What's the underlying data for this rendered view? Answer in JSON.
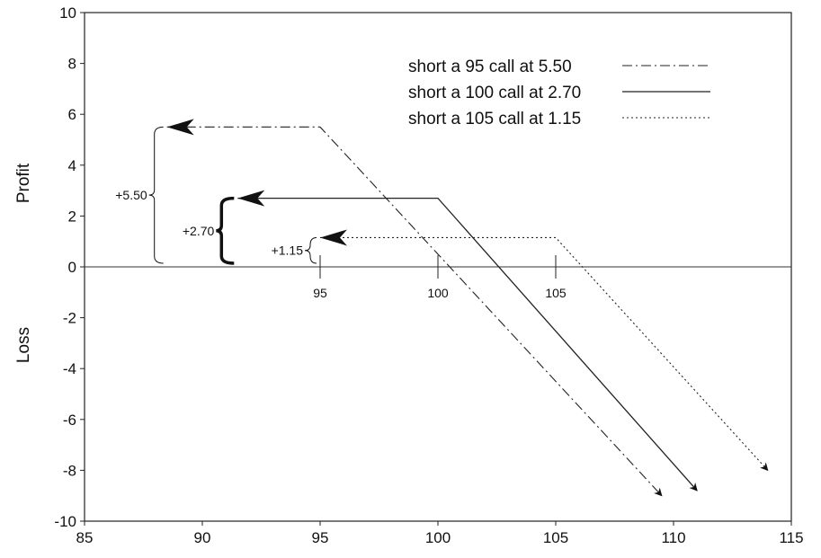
{
  "chart_data": {
    "type": "line",
    "title": "",
    "xlabel": "",
    "ylabel_top": "Profit",
    "ylabel_bottom": "Loss",
    "xlim": [
      85,
      115
    ],
    "ylim": [
      -10,
      10
    ],
    "xticks": [
      "85",
      "90",
      "95",
      "100",
      "105",
      "110",
      "115"
    ],
    "yticks": [
      "10",
      "8",
      "6",
      "4",
      "2",
      "0",
      "-2",
      "-4",
      "-6",
      "-8",
      "-10"
    ],
    "grid": false,
    "legend_position": "top-right",
    "series": [
      {
        "name": "short a 95 call at 5.50",
        "style": "dash-dot",
        "strike": 95,
        "premium": 5.5,
        "x": [
          88.5,
          95,
          109.5
        ],
        "y": [
          5.5,
          5.5,
          -9.0
        ]
      },
      {
        "name": "short a 100 call at 2.70",
        "style": "solid",
        "strike": 100,
        "premium": 2.7,
        "x": [
          91.5,
          100,
          111
        ],
        "y": [
          2.7,
          2.7,
          -8.8
        ]
      },
      {
        "name": "short a 105 call at 1.15",
        "style": "dotted",
        "strike": 105,
        "premium": 1.15,
        "x": [
          95,
          105,
          114
        ],
        "y": [
          1.15,
          1.15,
          -8.0
        ]
      }
    ],
    "strike_labels": [
      "95",
      "100",
      "105"
    ],
    "premium_annotations": [
      {
        "label": "+5.50",
        "x": 88.5,
        "y": 5.5
      },
      {
        "label": "+2.70",
        "x": 91.5,
        "y": 2.7
      },
      {
        "label": "+1.15",
        "x": 95,
        "y": 1.15
      }
    ]
  }
}
